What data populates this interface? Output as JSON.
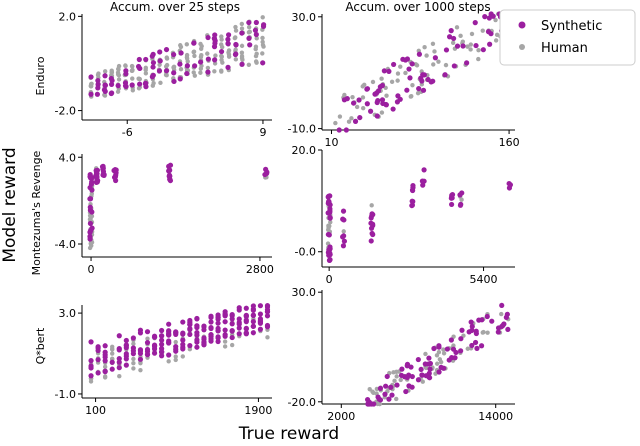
{
  "figure": {
    "xlabel": "True reward",
    "ylabel": "Model reward",
    "column_titles": [
      "Accum. over 25 steps",
      "Accum. over 1000 steps"
    ],
    "row_labels": [
      "Enduro",
      "Montezuma's Revenge",
      "Q*bert"
    ],
    "legend": [
      {
        "label": "Synthetic",
        "color": "#9b1f9f"
      },
      {
        "label": "Human",
        "color": "#a6a6a6"
      }
    ]
  },
  "chart_data": [
    {
      "type": "scatter",
      "game": "Enduro",
      "window": "Accum. over 25 steps",
      "xlim": [
        -11,
        10
      ],
      "ylim": [
        -2.4,
        2.1
      ],
      "xticks": [
        {
          "v": -6,
          "label": "-6"
        },
        {
          "v": 9,
          "label": "9"
        }
      ],
      "yticks": [
        {
          "v": 2.0,
          "label": "2.0"
        },
        {
          "v": -2.0,
          "label": "-2.0"
        }
      ],
      "trend": "vertical-columns",
      "x_range": [
        -10,
        9
      ],
      "y_low": [
        -1.5,
        0.0
      ],
      "y_high": [
        -0.5,
        2.0
      ]
    },
    {
      "type": "scatter",
      "game": "Enduro",
      "window": "Accum. over 1000 steps",
      "xlim": [
        2,
        165
      ],
      "ylim": [
        -10.5,
        31
      ],
      "xticks": [
        {
          "v": 10,
          "label": "10"
        },
        {
          "v": 160,
          "label": "160"
        }
      ],
      "yticks": [
        {
          "v": 30,
          "label": "30.0"
        },
        {
          "v": -10,
          "label": "-10.0"
        }
      ],
      "trend": "linear",
      "x_range": [
        10,
        155
      ],
      "y_range": [
        -8,
        28
      ],
      "spread": 8
    },
    {
      "type": "scatter",
      "game": "Montezuma's Revenge",
      "window": "Accum. over 25 steps",
      "xlim": [
        -150,
        3000
      ],
      "ylim": [
        -5.2,
        4.3
      ],
      "xticks": [
        {
          "v": 0,
          "label": "0"
        },
        {
          "v": 2800,
          "label": "2800"
        }
      ],
      "yticks": [
        {
          "v": 4.0,
          "label": "4.0"
        },
        {
          "v": -4.0,
          "label": "-4.0"
        }
      ],
      "trend": "clusters",
      "clusters": [
        {
          "x": 0,
          "y": [
            -4.5,
            2.5
          ],
          "n": 60
        },
        {
          "x": 100,
          "y": [
            1.5,
            3.3
          ],
          "n": 14
        },
        {
          "x": 200,
          "y": [
            2.0,
            3.3
          ],
          "n": 10
        },
        {
          "x": 400,
          "y": [
            1.8,
            3.4
          ],
          "n": 10
        },
        {
          "x": 1300,
          "y": [
            1.8,
            3.3
          ],
          "n": 14
        },
        {
          "x": 2900,
          "y": [
            2.0,
            3.0
          ],
          "n": 6
        }
      ]
    },
    {
      "type": "scatter",
      "game": "Montezuma's Revenge",
      "window": "Accum. over 1000 steps",
      "xlim": [
        -250,
        6500
      ],
      "ylim": [
        -3,
        20
      ],
      "xticks": [
        {
          "v": 0,
          "label": "0"
        },
        {
          "v": 5400,
          "label": "5400"
        }
      ],
      "yticks": [
        {
          "v": 20,
          "label": "20.0"
        },
        {
          "v": 0,
          "label": "-0.0"
        }
      ],
      "trend": "clusters",
      "clusters": [
        {
          "x": 0,
          "y": [
            -2.0,
            11.0
          ],
          "n": 48
        },
        {
          "x": 500,
          "y": [
            1.0,
            8.0
          ],
          "n": 8
        },
        {
          "x": 1500,
          "y": [
            2.0,
            9.5
          ],
          "n": 12
        },
        {
          "x": 2900,
          "y": [
            8.0,
            13.0
          ],
          "n": 8
        },
        {
          "x": 3300,
          "y": [
            13.0,
            17.0
          ],
          "n": 4
        },
        {
          "x": 4300,
          "y": [
            9.0,
            12.5
          ],
          "n": 6
        },
        {
          "x": 4600,
          "y": [
            9.0,
            12.0
          ],
          "n": 6
        },
        {
          "x": 6300,
          "y": [
            12.5,
            13.5
          ],
          "n": 3
        }
      ]
    },
    {
      "type": "scatter",
      "game": "Q*bert",
      "window": "Accum. over 25 steps",
      "xlim": [
        -50,
        2050
      ],
      "ylim": [
        -1.2,
        3.4
      ],
      "xticks": [
        {
          "v": 100,
          "label": "100"
        },
        {
          "v": 1900,
          "label": "1900"
        }
      ],
      "yticks": [
        {
          "v": 3.0,
          "label": "3.0"
        },
        {
          "v": -1.0,
          "label": "-1.0"
        }
      ],
      "trend": "vertical-columns",
      "x_range": [
        50,
        2000
      ],
      "y_low": [
        -0.5,
        1.8
      ],
      "y_high": [
        1.2,
        3.2
      ]
    },
    {
      "type": "scatter",
      "game": "Q*bert",
      "window": "Accum. over 1000 steps",
      "xlim": [
        500,
        15500
      ],
      "ylim": [
        -21,
        31
      ],
      "xticks": [
        {
          "v": 2000,
          "label": "2000"
        },
        {
          "v": 14000,
          "label": "14000"
        }
      ],
      "yticks": [
        {
          "v": 30,
          "label": "30.0"
        },
        {
          "v": -20,
          "label": "-20.0"
        }
      ],
      "trend": "linear",
      "x_range": [
        4000,
        15000
      ],
      "y_range": [
        -20,
        20
      ],
      "spread": 7
    }
  ]
}
